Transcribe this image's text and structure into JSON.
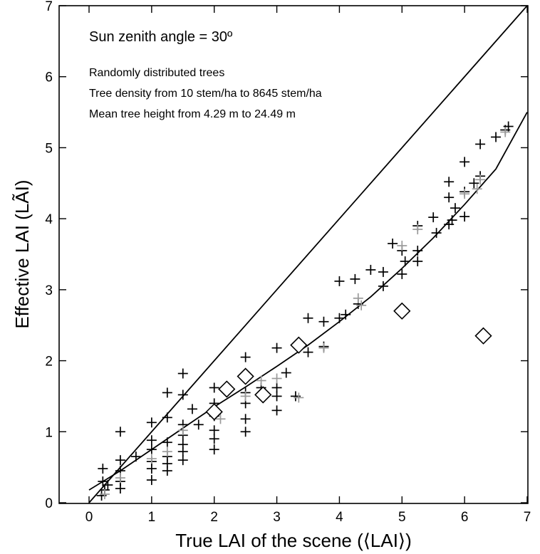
{
  "chart_data": {
    "type": "scatter",
    "xlabel": "True LAI of the scene (⟨LAI⟩)",
    "ylabel": "Effective LAI (LÃI)",
    "xlim": [
      0,
      7
    ],
    "ylim": [
      0,
      7
    ],
    "x_ticks": [
      0,
      1,
      2,
      3,
      4,
      5,
      6,
      7
    ],
    "y_ticks": [
      0,
      1,
      2,
      3,
      4,
      5,
      6,
      7
    ],
    "x_tick_labels": [
      "0",
      "1",
      "2",
      "3",
      "4",
      "5",
      "6",
      "7"
    ],
    "y_tick_labels": [
      "0",
      "1",
      "2",
      "3",
      "4",
      "5",
      "6",
      "7"
    ],
    "grid": false,
    "annotations": {
      "sun_angle": "Sun zenith angle = 30º",
      "line1": "Randomly distributed trees",
      "line2": "Tree density from 10 stem/ha to 8645 stem/ha",
      "line3": "Mean tree height from 4.29 m to 24.49 m"
    },
    "reference_lines": [
      {
        "type": "1:1",
        "x": [
          0,
          7
        ],
        "y": [
          0,
          7
        ]
      },
      {
        "type": "fit_curve",
        "x": [
          0,
          0.5,
          1,
          1.5,
          2,
          2.5,
          3,
          3.5,
          4,
          4.5,
          5,
          5.5,
          6,
          6.5,
          7
        ],
        "y": [
          0.18,
          0.45,
          0.75,
          1.05,
          1.35,
          1.63,
          1.92,
          2.22,
          2.55,
          2.9,
          3.3,
          3.73,
          4.2,
          4.7,
          5.5
        ]
      }
    ],
    "series": [
      {
        "marker": "plus",
        "color": "#000000",
        "points": [
          [
            0.2,
            0.1
          ],
          [
            0.22,
            0.3
          ],
          [
            0.22,
            0.48
          ],
          [
            0.25,
            0.18
          ],
          [
            0.3,
            0.25
          ],
          [
            0.5,
            1.0
          ],
          [
            0.5,
            0.6
          ],
          [
            0.5,
            0.45
          ],
          [
            0.5,
            0.3
          ],
          [
            0.5,
            0.2
          ],
          [
            0.75,
            0.65
          ],
          [
            1.0,
            1.13
          ],
          [
            1.0,
            0.88
          ],
          [
            1.0,
            0.75
          ],
          [
            1.0,
            0.58
          ],
          [
            1.0,
            0.48
          ],
          [
            1.0,
            0.32
          ],
          [
            1.25,
            1.55
          ],
          [
            1.25,
            1.2
          ],
          [
            1.25,
            0.85
          ],
          [
            1.25,
            0.65
          ],
          [
            1.25,
            0.55
          ],
          [
            1.25,
            0.45
          ],
          [
            1.5,
            1.82
          ],
          [
            1.5,
            1.52
          ],
          [
            1.5,
            1.1
          ],
          [
            1.5,
            0.95
          ],
          [
            1.5,
            0.82
          ],
          [
            1.5,
            0.72
          ],
          [
            1.5,
            0.6
          ],
          [
            1.65,
            1.32
          ],
          [
            1.75,
            1.1
          ],
          [
            2.0,
            1.62
          ],
          [
            2.0,
            1.4
          ],
          [
            2.0,
            1.22
          ],
          [
            2.0,
            1.02
          ],
          [
            2.0,
            0.9
          ],
          [
            2.0,
            0.75
          ],
          [
            2.5,
            2.05
          ],
          [
            2.5,
            1.75
          ],
          [
            2.5,
            1.55
          ],
          [
            2.5,
            1.4
          ],
          [
            2.5,
            1.18
          ],
          [
            2.5,
            1.0
          ],
          [
            2.75,
            1.62
          ],
          [
            3.0,
            2.18
          ],
          [
            3.0,
            1.62
          ],
          [
            3.0,
            1.5
          ],
          [
            3.0,
            1.3
          ],
          [
            3.15,
            1.83
          ],
          [
            3.3,
            1.5
          ],
          [
            3.5,
            2.6
          ],
          [
            3.5,
            2.12
          ],
          [
            3.75,
            2.55
          ],
          [
            3.75,
            2.2
          ],
          [
            4.0,
            3.12
          ],
          [
            4.0,
            2.6
          ],
          [
            4.1,
            2.65
          ],
          [
            4.25,
            3.15
          ],
          [
            4.3,
            2.8
          ],
          [
            4.5,
            3.28
          ],
          [
            4.7,
            3.25
          ],
          [
            4.7,
            3.05
          ],
          [
            4.85,
            3.65
          ],
          [
            5.0,
            3.55
          ],
          [
            5.0,
            3.22
          ],
          [
            5.05,
            3.4
          ],
          [
            5.25,
            3.9
          ],
          [
            5.25,
            3.55
          ],
          [
            5.25,
            3.4
          ],
          [
            5.5,
            4.02
          ],
          [
            5.55,
            3.8
          ],
          [
            5.75,
            4.52
          ],
          [
            5.75,
            4.3
          ],
          [
            5.75,
            3.92
          ],
          [
            5.8,
            3.98
          ],
          [
            5.85,
            4.15
          ],
          [
            6.0,
            4.8
          ],
          [
            6.0,
            4.38
          ],
          [
            6.0,
            4.03
          ],
          [
            6.15,
            4.5
          ],
          [
            6.25,
            5.05
          ],
          [
            6.25,
            4.6
          ],
          [
            6.5,
            5.15
          ],
          [
            6.65,
            5.25
          ],
          [
            6.7,
            5.3
          ]
        ]
      },
      {
        "marker": "plus",
        "color": "#9a9a9a",
        "points": [
          [
            0.25,
            0.12
          ],
          [
            0.5,
            0.35
          ],
          [
            1.0,
            0.62
          ],
          [
            1.25,
            0.72
          ],
          [
            1.5,
            1.02
          ],
          [
            2.0,
            1.3
          ],
          [
            2.1,
            1.18
          ],
          [
            2.5,
            1.5
          ],
          [
            2.75,
            1.72
          ],
          [
            3.0,
            1.75
          ],
          [
            3.35,
            1.48
          ],
          [
            3.75,
            2.18
          ],
          [
            4.3,
            2.88
          ],
          [
            4.35,
            2.78
          ],
          [
            5.0,
            3.62
          ],
          [
            5.25,
            3.85
          ],
          [
            6.0,
            4.35
          ],
          [
            6.2,
            4.42
          ],
          [
            6.25,
            4.55
          ],
          [
            6.65,
            5.22
          ]
        ]
      },
      {
        "marker": "diamond",
        "color": "#000000",
        "points": [
          [
            2.0,
            1.28
          ],
          [
            2.2,
            1.6
          ],
          [
            2.5,
            1.78
          ],
          [
            2.78,
            1.52
          ],
          [
            3.35,
            2.22
          ],
          [
            5.0,
            2.7
          ],
          [
            6.3,
            2.35
          ]
        ]
      }
    ]
  }
}
